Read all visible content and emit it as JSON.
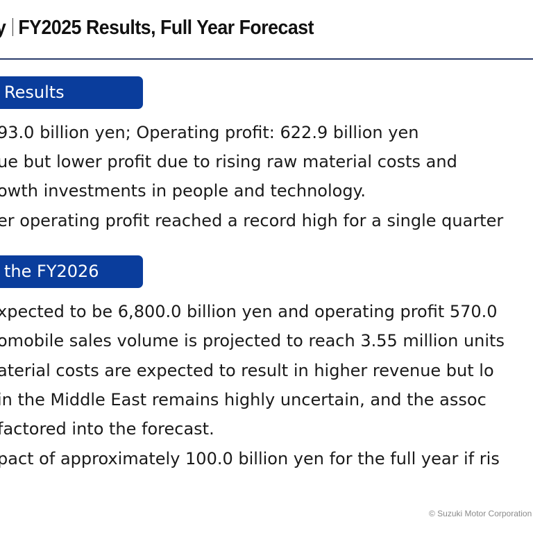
{
  "header": {
    "title_prefix": "y",
    "title_main": "FY2025 Results, Full Year Forecast"
  },
  "sections": [
    {
      "heading": "Results",
      "lines": [
        "93.0 billion yen; Operating profit: 622.9 billion yen",
        "ue but lower profit due to rising raw material costs and",
        "owth investments in people and technology.",
        "er operating profit reached a record high for a single quarter"
      ]
    },
    {
      "heading": "the FY2026",
      "lines": [
        "xpected to be 6,800.0 billion yen and operating profit 570.0",
        "omobile sales volume is projected to reach 3.55 million units",
        "aterial costs are expected to result in higher revenue but lo",
        "in the Middle East remains highly uncertain, and the assoc",
        "factored into the forecast.",
        "pact of approximately 100.0 billion yen for the full year if ris"
      ]
    }
  ],
  "footer": {
    "copyright": "© Suzuki Motor Corporation"
  },
  "colors": {
    "accent": "#0a3d9c",
    "rule": "#2a3c6b"
  }
}
